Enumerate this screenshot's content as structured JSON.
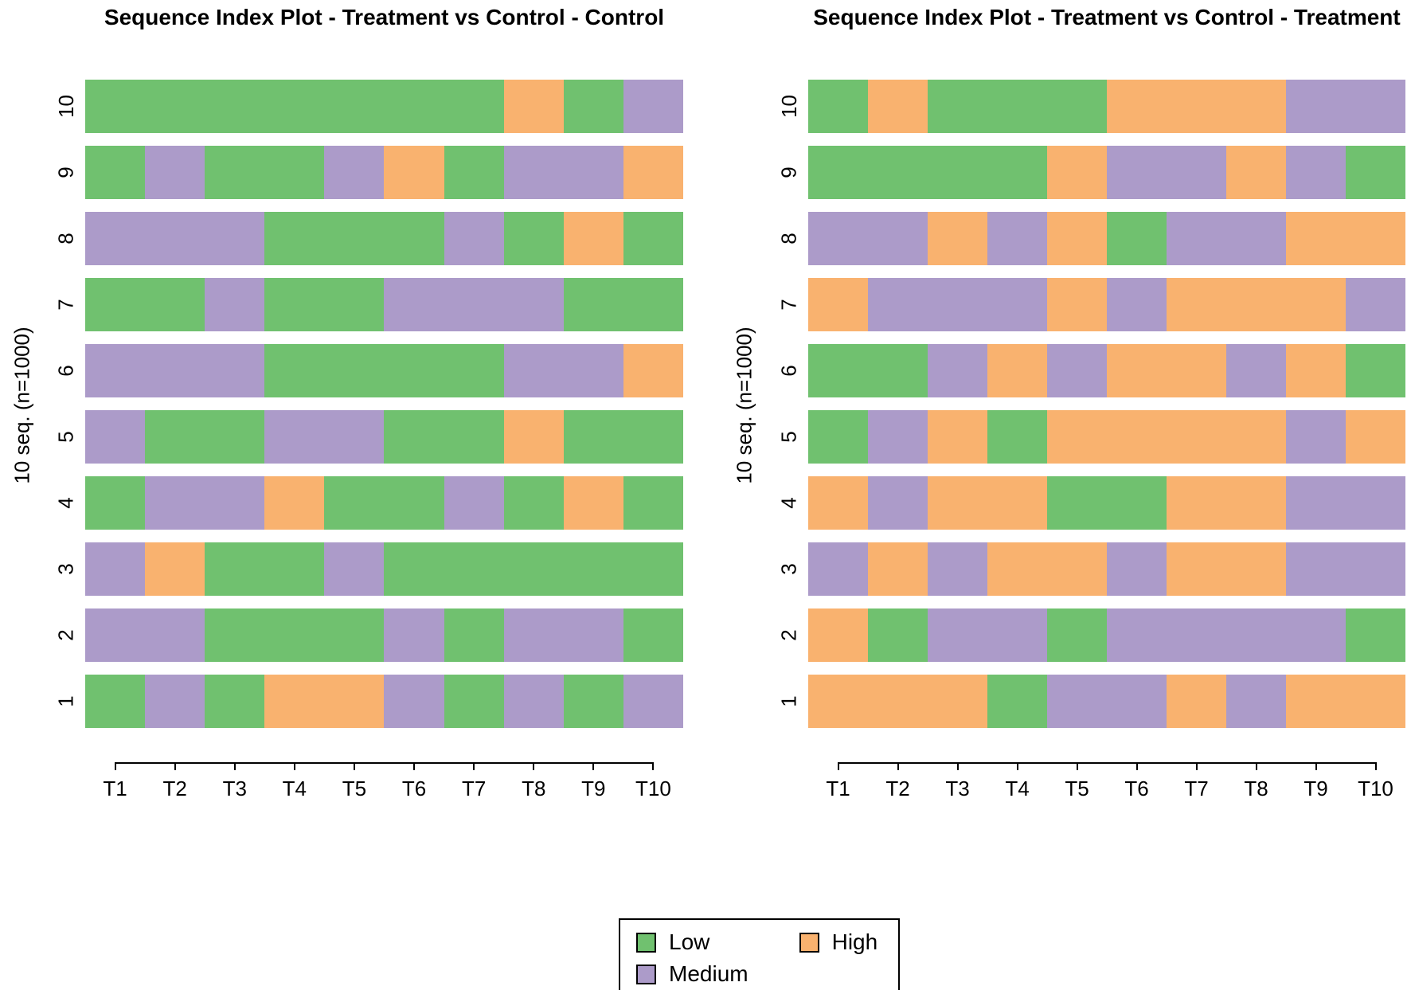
{
  "figure_title": "Sequence Index Plot - Treatment vs Control",
  "state_colors": {
    "L": "#70C16F",
    "M": "#AC9BC9",
    "H": "#F9B26F"
  },
  "legend": {
    "items": [
      {
        "label": "Low",
        "state": "L",
        "color": "#70C16F"
      },
      {
        "label": "Medium",
        "state": "M",
        "color": "#AC9BC9"
      },
      {
        "label": "High",
        "state": "H",
        "color": "#F9B26F"
      }
    ]
  },
  "chart_data": [
    {
      "type": "sequence-index",
      "group": "Control",
      "title": "Sequence Index Plot - Treatment vs Control - Control",
      "ylabel": "10 seq. (n=1000)",
      "x_categories": [
        "T1",
        "T2",
        "T3",
        "T4",
        "T5",
        "T6",
        "T7",
        "T8",
        "T9",
        "T10"
      ],
      "states_legend": {
        "L": "Low",
        "M": "Medium",
        "H": "High"
      },
      "rows_order": "top-to-bottom",
      "rows": [
        {
          "label": "10",
          "states": [
            "L",
            "L",
            "L",
            "L",
            "L",
            "L",
            "L",
            "H",
            "L",
            "M"
          ]
        },
        {
          "label": "9",
          "states": [
            "L",
            "M",
            "L",
            "L",
            "M",
            "H",
            "L",
            "M",
            "M",
            "H"
          ]
        },
        {
          "label": "8",
          "states": [
            "M",
            "M",
            "M",
            "L",
            "L",
            "L",
            "M",
            "L",
            "H",
            "L"
          ]
        },
        {
          "label": "7",
          "states": [
            "L",
            "L",
            "M",
            "L",
            "L",
            "M",
            "M",
            "M",
            "L",
            "L"
          ]
        },
        {
          "label": "6",
          "states": [
            "M",
            "M",
            "M",
            "L",
            "L",
            "L",
            "L",
            "M",
            "M",
            "H"
          ]
        },
        {
          "label": "5",
          "states": [
            "M",
            "L",
            "L",
            "M",
            "M",
            "L",
            "L",
            "H",
            "L",
            "L"
          ]
        },
        {
          "label": "4",
          "states": [
            "L",
            "M",
            "M",
            "H",
            "L",
            "L",
            "M",
            "L",
            "H",
            "L"
          ]
        },
        {
          "label": "3",
          "states": [
            "M",
            "H",
            "L",
            "L",
            "M",
            "L",
            "L",
            "L",
            "L",
            "L"
          ]
        },
        {
          "label": "2",
          "states": [
            "M",
            "M",
            "L",
            "L",
            "L",
            "M",
            "L",
            "M",
            "M",
            "L"
          ]
        },
        {
          "label": "1",
          "states": [
            "L",
            "M",
            "L",
            "H",
            "H",
            "M",
            "L",
            "M",
            "L",
            "M"
          ]
        }
      ]
    },
    {
      "type": "sequence-index",
      "group": "Treatment",
      "title": "Sequence Index Plot - Treatment vs Control - Treatment",
      "ylabel": "10 seq. (n=1000)",
      "x_categories": [
        "T1",
        "T2",
        "T3",
        "T4",
        "T5",
        "T6",
        "T7",
        "T8",
        "T9",
        "T10"
      ],
      "states_legend": {
        "L": "Low",
        "M": "Medium",
        "H": "High"
      },
      "rows_order": "top-to-bottom",
      "rows": [
        {
          "label": "10",
          "states": [
            "L",
            "H",
            "L",
            "L",
            "L",
            "H",
            "H",
            "H",
            "M",
            "M"
          ]
        },
        {
          "label": "9",
          "states": [
            "L",
            "L",
            "L",
            "L",
            "H",
            "M",
            "M",
            "H",
            "M",
            "L"
          ]
        },
        {
          "label": "8",
          "states": [
            "M",
            "M",
            "H",
            "M",
            "H",
            "L",
            "M",
            "M",
            "H",
            "H"
          ]
        },
        {
          "label": "7",
          "states": [
            "H",
            "M",
            "M",
            "M",
            "H",
            "M",
            "H",
            "H",
            "H",
            "M"
          ]
        },
        {
          "label": "6",
          "states": [
            "L",
            "L",
            "M",
            "H",
            "M",
            "H",
            "H",
            "M",
            "H",
            "L"
          ]
        },
        {
          "label": "5",
          "states": [
            "L",
            "M",
            "H",
            "L",
            "H",
            "H",
            "H",
            "H",
            "M",
            "H"
          ]
        },
        {
          "label": "4",
          "states": [
            "H",
            "M",
            "H",
            "H",
            "L",
            "L",
            "H",
            "H",
            "M",
            "M"
          ]
        },
        {
          "label": "3",
          "states": [
            "M",
            "H",
            "M",
            "H",
            "H",
            "M",
            "H",
            "H",
            "M",
            "M"
          ]
        },
        {
          "label": "2",
          "states": [
            "H",
            "L",
            "M",
            "M",
            "L",
            "M",
            "M",
            "M",
            "M",
            "L"
          ]
        },
        {
          "label": "1",
          "states": [
            "H",
            "H",
            "H",
            "L",
            "M",
            "M",
            "H",
            "M",
            "H",
            "H"
          ]
        }
      ]
    }
  ]
}
